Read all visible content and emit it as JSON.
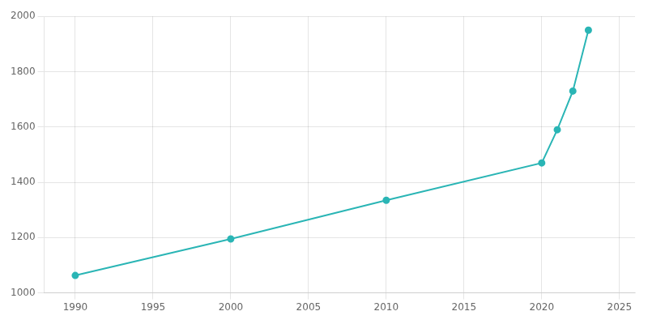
{
  "chart_data": {
    "type": "line",
    "x": [
      1990,
      2000,
      2010,
      2020,
      2021,
      2022,
      2023
    ],
    "values": [
      1063,
      1195,
      1335,
      1470,
      1590,
      1730,
      1950
    ],
    "color": "#2ab5b5",
    "marker": "o",
    "xlim": [
      1988,
      2026
    ],
    "xticks": [
      1990,
      1995,
      2000,
      2005,
      2010,
      2015,
      2020,
      2025
    ],
    "ylim": [
      1000,
      2000
    ],
    "yticks": [
      1000,
      1200,
      1400,
      1600,
      1800,
      2000
    ],
    "grid": true
  }
}
